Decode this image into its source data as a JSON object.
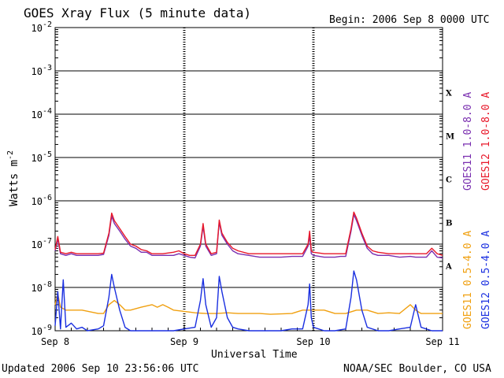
{
  "chart_data": {
    "type": "line",
    "title": "GOES Xray Flux (5 minute data)",
    "begin_label": "Begin:  2006 Sep 8 0000 UTC",
    "xlabel": "Universal Time",
    "ylabel": "Watts m",
    "ylabel_sup": "-2",
    "x_ticks": [
      "Sep 8",
      "Sep 9",
      "Sep 10",
      "Sep 11"
    ],
    "xlim": [
      0,
      72
    ],
    "x_unit": "hours since begin",
    "y_scale": "log",
    "ylim": [
      1e-09,
      0.01
    ],
    "y_ticks": [
      {
        "base": "10",
        "exp": "-2"
      },
      {
        "base": "10",
        "exp": "-3"
      },
      {
        "base": "10",
        "exp": "-4"
      },
      {
        "base": "10",
        "exp": "-5"
      },
      {
        "base": "10",
        "exp": "-6"
      },
      {
        "base": "10",
        "exp": "-7"
      },
      {
        "base": "10",
        "exp": "-8"
      },
      {
        "base": "10",
        "exp": "-9"
      }
    ],
    "flare_classes": [
      "X",
      "M",
      "C",
      "B",
      "A"
    ],
    "grid": true,
    "series": [
      {
        "name": "GOES11 1.0-8.0 A",
        "color": "#7a2fb0",
        "points": [
          [
            0,
            7e-08
          ],
          [
            0.5,
            1.3e-07
          ],
          [
            1,
            6e-08
          ],
          [
            2,
            5.5e-08
          ],
          [
            3,
            6e-08
          ],
          [
            4,
            5.5e-08
          ],
          [
            6,
            5.5e-08
          ],
          [
            8,
            5.5e-08
          ],
          [
            9,
            5.8e-08
          ],
          [
            10,
            1.6e-07
          ],
          [
            10.5,
            4.4e-07
          ],
          [
            11,
            3e-07
          ],
          [
            12,
            2e-07
          ],
          [
            13,
            1.3e-07
          ],
          [
            14,
            9e-08
          ],
          [
            15,
            8e-08
          ],
          [
            16,
            6.5e-08
          ],
          [
            17,
            6.5e-08
          ],
          [
            18,
            5.5e-08
          ],
          [
            20,
            5.5e-08
          ],
          [
            22,
            5.5e-08
          ],
          [
            23,
            6e-08
          ],
          [
            24,
            5.5e-08
          ],
          [
            25,
            5e-08
          ],
          [
            26,
            4.8e-08
          ],
          [
            27,
            9e-08
          ],
          [
            27.5,
            2.6e-07
          ],
          [
            28,
            9e-08
          ],
          [
            29,
            5.5e-08
          ],
          [
            30,
            6e-08
          ],
          [
            30.5,
            3.2e-07
          ],
          [
            31,
            1.6e-07
          ],
          [
            32,
            1e-07
          ],
          [
            33,
            7e-08
          ],
          [
            34,
            6e-08
          ],
          [
            36,
            5.5e-08
          ],
          [
            38,
            5e-08
          ],
          [
            40,
            5e-08
          ],
          [
            42,
            5e-08
          ],
          [
            44,
            5.2e-08
          ],
          [
            46,
            5.2e-08
          ],
          [
            47,
            9e-08
          ],
          [
            47.3,
            1.6e-07
          ],
          [
            47.6,
            6e-08
          ],
          [
            48,
            5.5e-08
          ],
          [
            50,
            5e-08
          ],
          [
            52,
            5e-08
          ],
          [
            53,
            5.2e-08
          ],
          [
            54,
            5.2e-08
          ],
          [
            55,
            2e-07
          ],
          [
            55.5,
            4.8e-07
          ],
          [
            56,
            3.5e-07
          ],
          [
            57,
            1.6e-07
          ],
          [
            58,
            8e-08
          ],
          [
            59,
            6e-08
          ],
          [
            60,
            5.5e-08
          ],
          [
            62,
            5.5e-08
          ],
          [
            64,
            5e-08
          ],
          [
            66,
            5.2e-08
          ],
          [
            67,
            5e-08
          ],
          [
            69,
            5e-08
          ],
          [
            70,
            7e-08
          ],
          [
            71,
            5e-08
          ],
          [
            72,
            4.8e-08
          ]
        ]
      },
      {
        "name": "GOES12 1.0-8.0 A",
        "color": "#e8182a",
        "points": [
          [
            0,
            7.5e-08
          ],
          [
            0.5,
            1.5e-07
          ],
          [
            1,
            6.5e-08
          ],
          [
            2,
            6e-08
          ],
          [
            3,
            6.5e-08
          ],
          [
            4,
            6e-08
          ],
          [
            6,
            6e-08
          ],
          [
            8,
            6e-08
          ],
          [
            9,
            6.2e-08
          ],
          [
            10,
            1.8e-07
          ],
          [
            10.5,
            5.2e-07
          ],
          [
            11,
            3.5e-07
          ],
          [
            12,
            2.3e-07
          ],
          [
            13,
            1.5e-07
          ],
          [
            14,
            1e-07
          ],
          [
            15,
            9e-08
          ],
          [
            16,
            7.5e-08
          ],
          [
            17,
            7e-08
          ],
          [
            18,
            6e-08
          ],
          [
            20,
            6e-08
          ],
          [
            22,
            6.5e-08
          ],
          [
            23,
            7e-08
          ],
          [
            24,
            6e-08
          ],
          [
            25,
            5.5e-08
          ],
          [
            26,
            5.5e-08
          ],
          [
            27,
            1e-07
          ],
          [
            27.5,
            3e-07
          ],
          [
            28,
            1e-07
          ],
          [
            29,
            6e-08
          ],
          [
            30,
            6.5e-08
          ],
          [
            30.5,
            3.6e-07
          ],
          [
            31,
            1.8e-07
          ],
          [
            32,
            1.1e-07
          ],
          [
            33,
            8e-08
          ],
          [
            34,
            7e-08
          ],
          [
            36,
            6e-08
          ],
          [
            38,
            6e-08
          ],
          [
            40,
            6e-08
          ],
          [
            42,
            6e-08
          ],
          [
            44,
            6e-08
          ],
          [
            46,
            6e-08
          ],
          [
            47,
            1e-07
          ],
          [
            47.3,
            2e-07
          ],
          [
            47.6,
            7e-08
          ],
          [
            48,
            6.5e-08
          ],
          [
            50,
            6e-08
          ],
          [
            52,
            6e-08
          ],
          [
            53,
            6e-08
          ],
          [
            54,
            6e-08
          ],
          [
            55,
            2.3e-07
          ],
          [
            55.5,
            5.5e-07
          ],
          [
            56,
            4e-07
          ],
          [
            57,
            1.8e-07
          ],
          [
            58,
            9e-08
          ],
          [
            59,
            7e-08
          ],
          [
            60,
            6.5e-08
          ],
          [
            62,
            6e-08
          ],
          [
            64,
            6e-08
          ],
          [
            66,
            6e-08
          ],
          [
            67,
            6e-08
          ],
          [
            69,
            6e-08
          ],
          [
            70,
            8e-08
          ],
          [
            71,
            6e-08
          ],
          [
            72,
            5.5e-08
          ]
        ]
      },
      {
        "name": "GOES11 0.5-4.0 A",
        "color": "#f0a010",
        "points": [
          [
            0,
            4e-09
          ],
          [
            0.5,
            7e-09
          ],
          [
            1,
            3.5e-09
          ],
          [
            2,
            3e-09
          ],
          [
            3,
            3e-09
          ],
          [
            5,
            3e-09
          ],
          [
            8,
            2.5e-09
          ],
          [
            9,
            2.5e-09
          ],
          [
            10,
            4e-09
          ],
          [
            11,
            5e-09
          ],
          [
            12,
            4e-09
          ],
          [
            13,
            3e-09
          ],
          [
            14,
            3e-09
          ],
          [
            16,
            3.5e-09
          ],
          [
            18,
            4e-09
          ],
          [
            19,
            3.5e-09
          ],
          [
            20,
            4e-09
          ],
          [
            21,
            3.5e-09
          ],
          [
            22,
            3e-09
          ],
          [
            24,
            2.8e-09
          ],
          [
            26,
            2.6e-09
          ],
          [
            28,
            2.5e-09
          ],
          [
            30,
            2.5e-09
          ],
          [
            32,
            2.6e-09
          ],
          [
            34,
            2.5e-09
          ],
          [
            36,
            2.5e-09
          ],
          [
            38,
            2.5e-09
          ],
          [
            40,
            2.4e-09
          ],
          [
            44,
            2.5e-09
          ],
          [
            46,
            3e-09
          ],
          [
            47,
            3e-09
          ],
          [
            48,
            3e-09
          ],
          [
            50,
            3e-09
          ],
          [
            52,
            2.5e-09
          ],
          [
            54,
            2.5e-09
          ],
          [
            56,
            3e-09
          ],
          [
            58,
            3e-09
          ],
          [
            60,
            2.5e-09
          ],
          [
            62,
            2.6e-09
          ],
          [
            64,
            2.5e-09
          ],
          [
            66,
            4e-09
          ],
          [
            67,
            3e-09
          ],
          [
            68,
            2.5e-09
          ],
          [
            70,
            2.5e-09
          ],
          [
            72,
            2.5e-09
          ]
        ]
      },
      {
        "name": "GOES12 0.5-4.0 A",
        "color": "#1a2fe0",
        "points": [
          [
            0,
            1.3e-09
          ],
          [
            0.5,
            8e-09
          ],
          [
            1,
            1.1e-09
          ],
          [
            1.5,
            1.5e-08
          ],
          [
            2,
            1.2e-09
          ],
          [
            3,
            1.5e-09
          ],
          [
            4,
            1.1e-09
          ],
          [
            5,
            1.2e-09
          ],
          [
            6,
            1e-09
          ],
          [
            8,
            1.1e-09
          ],
          [
            9,
            1.3e-09
          ],
          [
            10,
            6e-09
          ],
          [
            10.5,
            2e-08
          ],
          [
            11,
            1e-08
          ],
          [
            12,
            3e-09
          ],
          [
            13,
            1.2e-09
          ],
          [
            14,
            1e-09
          ],
          [
            16,
            1e-09
          ],
          [
            18,
            1e-09
          ],
          [
            20,
            1e-09
          ],
          [
            22,
            1e-09
          ],
          [
            24,
            1.1e-09
          ],
          [
            26,
            1.2e-09
          ],
          [
            27,
            5e-09
          ],
          [
            27.5,
            1.6e-08
          ],
          [
            28,
            4e-09
          ],
          [
            29,
            1.2e-09
          ],
          [
            30,
            2e-09
          ],
          [
            30.5,
            1.8e-08
          ],
          [
            31,
            8e-09
          ],
          [
            32,
            2e-09
          ],
          [
            33,
            1.2e-09
          ],
          [
            34,
            1.1e-09
          ],
          [
            36,
            1e-09
          ],
          [
            38,
            1e-09
          ],
          [
            40,
            1e-09
          ],
          [
            42,
            1e-09
          ],
          [
            44,
            1.1e-09
          ],
          [
            46,
            1.1e-09
          ],
          [
            47,
            4e-09
          ],
          [
            47.3,
            1.2e-08
          ],
          [
            47.6,
            2e-09
          ],
          [
            48,
            1.2e-09
          ],
          [
            50,
            1e-09
          ],
          [
            52,
            1e-09
          ],
          [
            54,
            1.1e-09
          ],
          [
            55,
            6e-09
          ],
          [
            55.5,
            2.4e-08
          ],
          [
            56,
            1.5e-08
          ],
          [
            57,
            3e-09
          ],
          [
            58,
            1.2e-09
          ],
          [
            60,
            1e-09
          ],
          [
            62,
            1e-09
          ],
          [
            64,
            1.1e-09
          ],
          [
            66,
            1.2e-09
          ],
          [
            67,
            4e-09
          ],
          [
            68,
            1.2e-09
          ],
          [
            70,
            1e-09
          ],
          [
            72,
            1e-09
          ]
        ]
      }
    ]
  },
  "footer": {
    "updated": "Updated 2006 Sep 10 23:56:06 UTC",
    "source": "NOAA/SEC Boulder, CO USA"
  }
}
